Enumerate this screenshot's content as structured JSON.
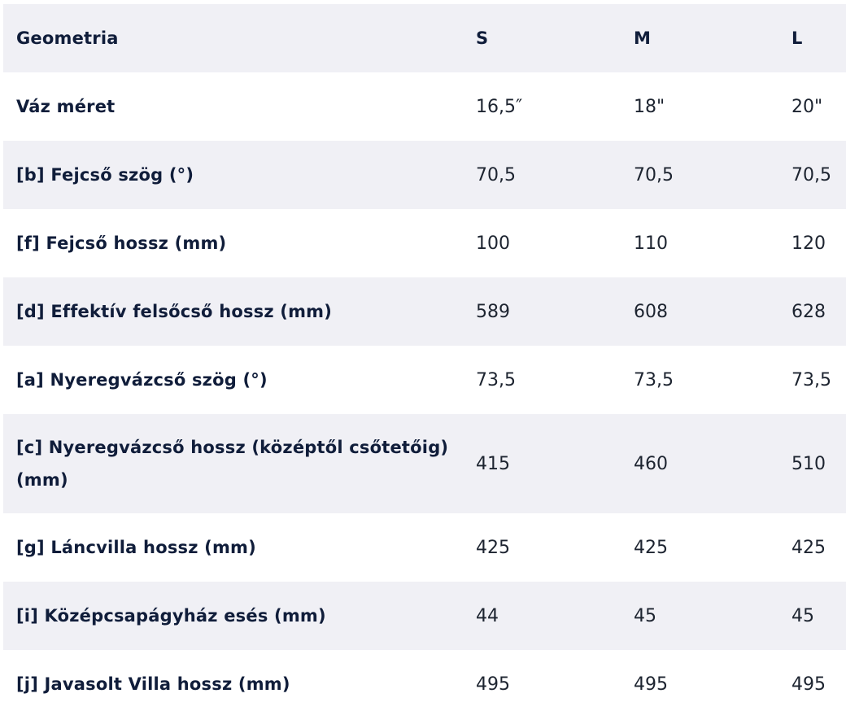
{
  "table": {
    "headers": [
      "Geometria",
      "S",
      "M",
      "L"
    ],
    "rows": [
      {
        "label": "Váz méret",
        "values": [
          "16,5″",
          "18\"",
          "20\""
        ]
      },
      {
        "label": "[b] Fejcső szög (°)",
        "values": [
          "70,5",
          "70,5",
          "70,5"
        ]
      },
      {
        "label": "[f] Fejcső hossz (mm)",
        "values": [
          "100",
          "110",
          "120"
        ]
      },
      {
        "label": "[d] Effektív felsőcső hossz (mm)",
        "values": [
          "589",
          "608",
          "628"
        ]
      },
      {
        "label": "[a] Nyeregvázcső szög (°)",
        "values": [
          "73,5",
          "73,5",
          "73,5"
        ]
      },
      {
        "label": "[c] Nyeregvázcső hossz (középtől csőtetőig) (mm)",
        "values": [
          "415",
          "460",
          "510"
        ]
      },
      {
        "label": "[g] Láncvilla hossz (mm)",
        "values": [
          "425",
          "425",
          "425"
        ]
      },
      {
        "label": "[i] Középcsapágyház esés (mm)",
        "values": [
          "44",
          "45",
          "45"
        ]
      },
      {
        "label": "[j] Javasolt Villa hossz (mm)",
        "values": [
          "495",
          "495",
          "495"
        ]
      }
    ],
    "colors": {
      "shaded_row": "#f0f0f5",
      "text": "#101d3a"
    }
  }
}
